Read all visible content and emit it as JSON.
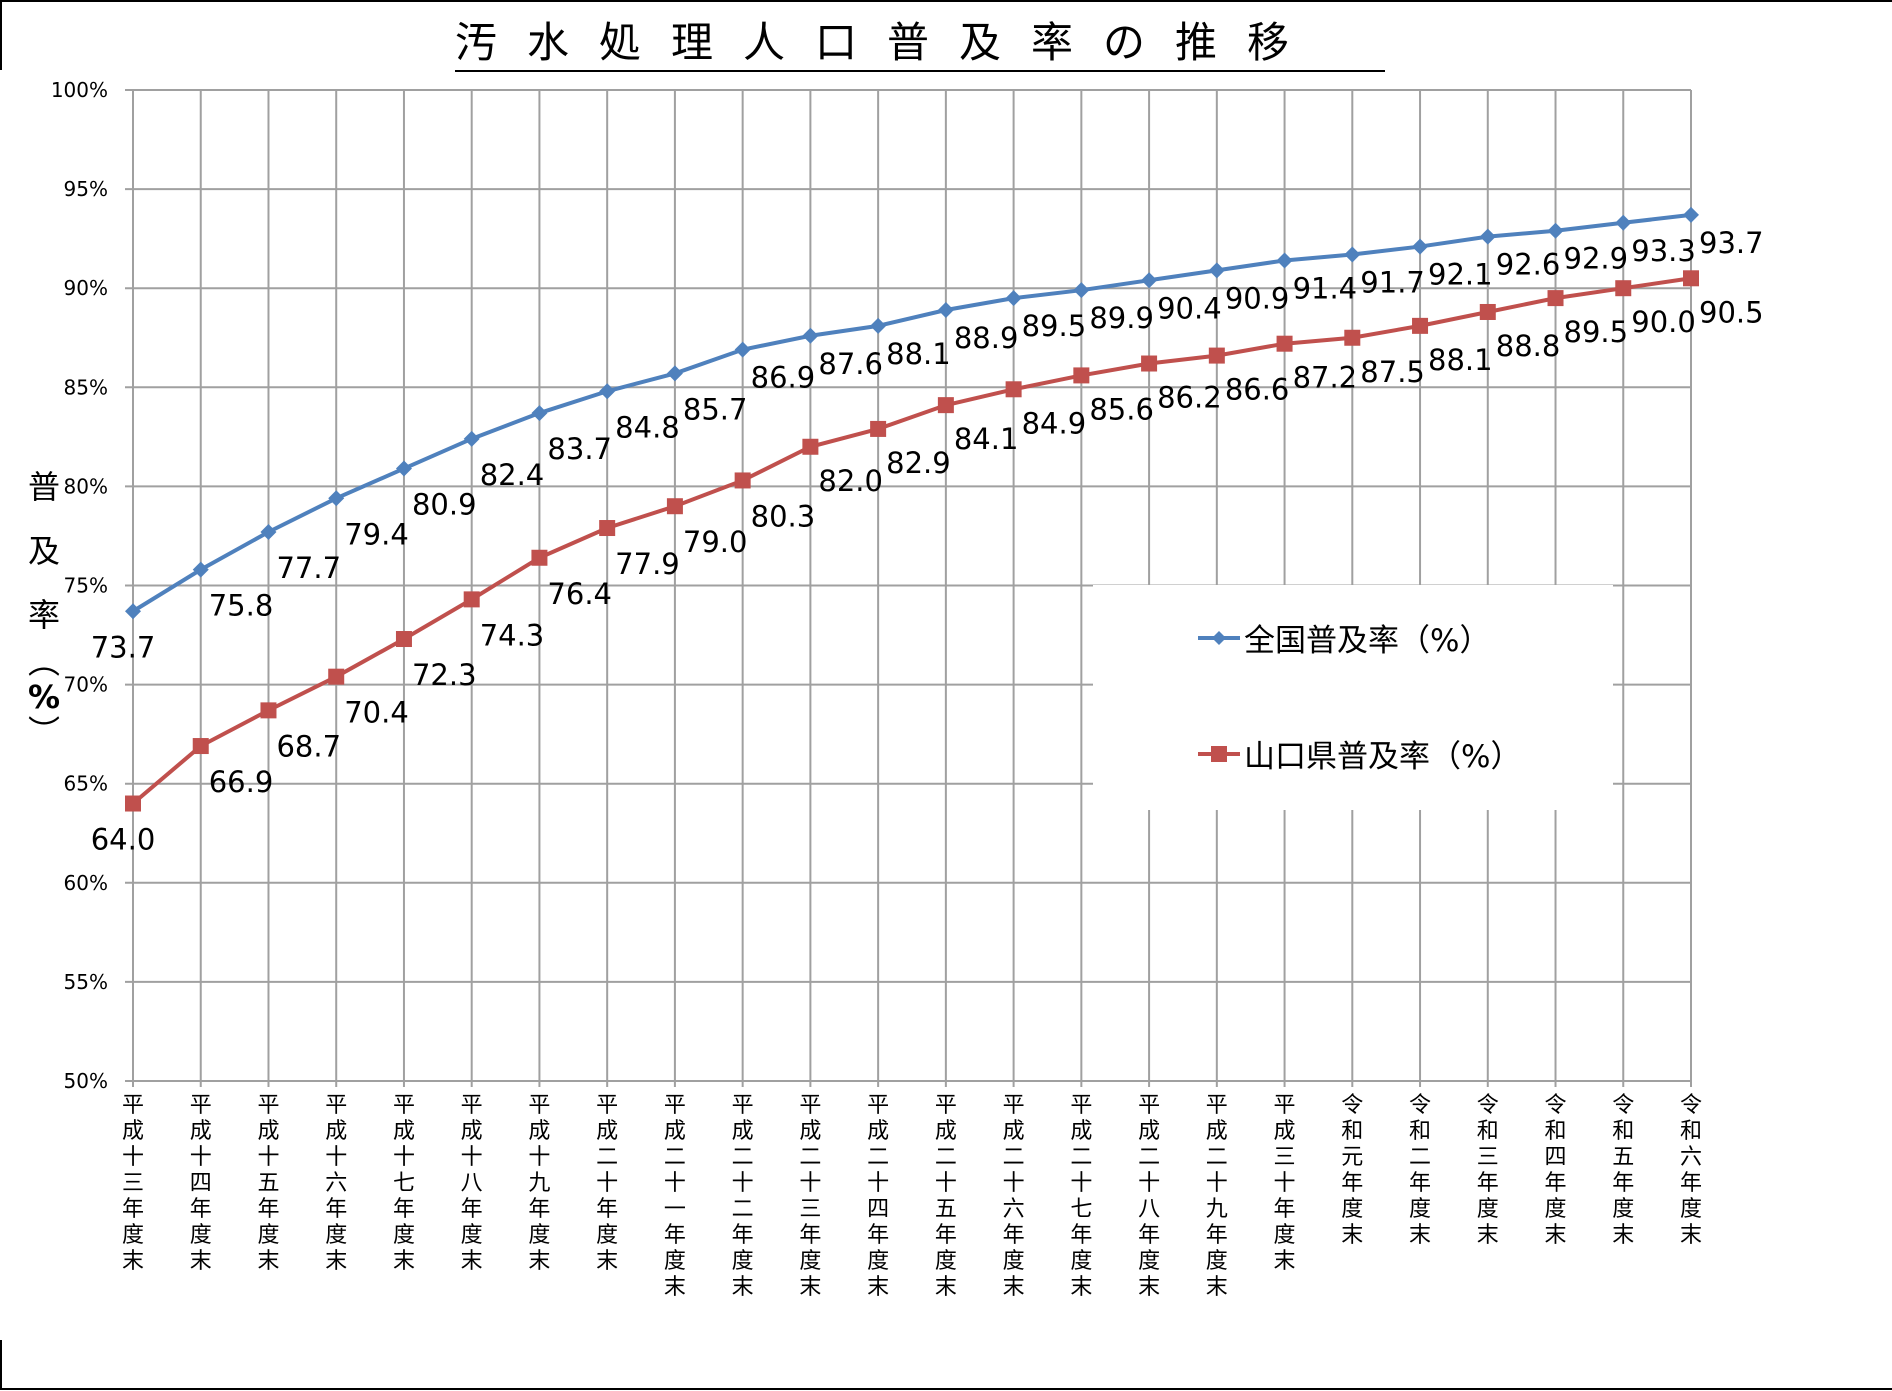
{
  "chart_data": {
    "type": "line",
    "title": "汚水処理人口普及率の推移",
    "xlabel": "",
    "ylabel": "普及率（%）",
    "ylim": [
      50,
      100
    ],
    "yticks": [
      "50%",
      "55%",
      "60%",
      "65%",
      "70%",
      "75%",
      "80%",
      "85%",
      "90%",
      "95%",
      "100%"
    ],
    "grid": true,
    "legend_position": "inside right-middle",
    "categories": [
      "平成十三年度末",
      "平成十四年度末",
      "平成十五年度末",
      "平成十六年度末",
      "平成十七年度末",
      "平成十八年度末",
      "平成十九年度末",
      "平成二十年度末",
      "平成二十一年度末",
      "平成二十二年度末",
      "平成二十三年度末",
      "平成二十四年度末",
      "平成二十五年度末",
      "平成二十六年度末",
      "平成二十七年度末",
      "平成二十八年度末",
      "平成二十九年度末",
      "平成三十年度末",
      "令和元年度末",
      "令和二年度末",
      "令和三年度末",
      "令和四年度末",
      "令和五年度末",
      "令和六年度末"
    ],
    "series": [
      {
        "name": "全国普及率（%）",
        "color": "#4F81BD",
        "marker": "diamond",
        "values": [
          73.7,
          75.8,
          77.7,
          79.4,
          80.9,
          82.4,
          83.7,
          84.8,
          85.7,
          86.9,
          87.6,
          88.1,
          88.9,
          89.5,
          89.9,
          90.4,
          90.9,
          91.4,
          91.7,
          92.1,
          92.6,
          92.9,
          93.3,
          93.7
        ]
      },
      {
        "name": "山口県普及率（%）",
        "color": "#C0504D",
        "marker": "square",
        "values": [
          64.0,
          66.9,
          68.7,
          70.4,
          72.3,
          74.3,
          76.4,
          77.9,
          79.0,
          80.3,
          82.0,
          82.9,
          84.1,
          84.9,
          85.6,
          86.2,
          86.6,
          87.2,
          87.5,
          88.1,
          88.8,
          89.5,
          90.0,
          90.5
        ]
      }
    ]
  },
  "page": {
    "title": "汚水処理人口普及率の推移",
    "ylabel_chars": [
      "普",
      "及",
      "率"
    ],
    "ylabel_paren_open": "︵",
    "ylabel_percent": "%",
    "ylabel_paren_close": "︶",
    "legend": {
      "national": "全国普及率（%）",
      "yamaguchi": "山口県普及率（%）"
    },
    "colors": {
      "national": "#4F81BD",
      "yamaguchi": "#C0504D",
      "grid": "#A0A0A0"
    }
  }
}
